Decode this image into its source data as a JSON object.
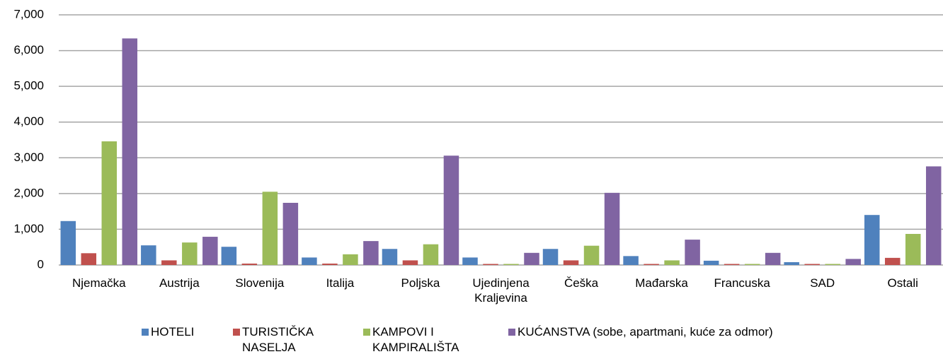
{
  "chart_data": {
    "type": "bar",
    "categories": [
      "Njemačka",
      "Austrija",
      "Slovenija",
      "Italija",
      "Poljska",
      "Ujedinjena Kraljevina",
      "Češka",
      "Mađarska",
      "Francuska",
      "SAD",
      "Ostali"
    ],
    "series": [
      {
        "name": "HOTELI",
        "color": "#4f81bd",
        "values": [
          1230,
          550,
          510,
          210,
          450,
          210,
          450,
          250,
          120,
          80,
          1400
        ]
      },
      {
        "name": "TURISTIČKA NASELJA",
        "color": "#c0504d",
        "values": [
          330,
          130,
          40,
          40,
          130,
          30,
          130,
          30,
          30,
          30,
          200
        ]
      },
      {
        "name": "KAMPOVI I KAMPIRALIŠTA",
        "color": "#9bbb59",
        "values": [
          3460,
          630,
          2050,
          300,
          580,
          30,
          540,
          130,
          30,
          30,
          870
        ]
      },
      {
        "name": "KUĆANSTVA (sobe, apartmani, kuće za odmor)",
        "color": "#8064a2",
        "values": [
          6340,
          790,
          1740,
          670,
          3060,
          340,
          2020,
          710,
          340,
          170,
          2760
        ]
      }
    ],
    "ylim": [
      0,
      7000
    ],
    "yticks": [
      0,
      {
        "value": 1000,
        "label": "1,000"
      },
      {
        "value": 2000,
        "label": "2,000"
      },
      {
        "value": 3000,
        "label": "3,000"
      },
      {
        "value": 4000,
        "label": "4,000"
      },
      {
        "value": 5000,
        "label": "5,000"
      },
      {
        "value": 6000,
        "label": "6,000"
      },
      {
        "value": 7000,
        "label": "7,000"
      }
    ],
    "grid": true,
    "legend": "bottom"
  }
}
